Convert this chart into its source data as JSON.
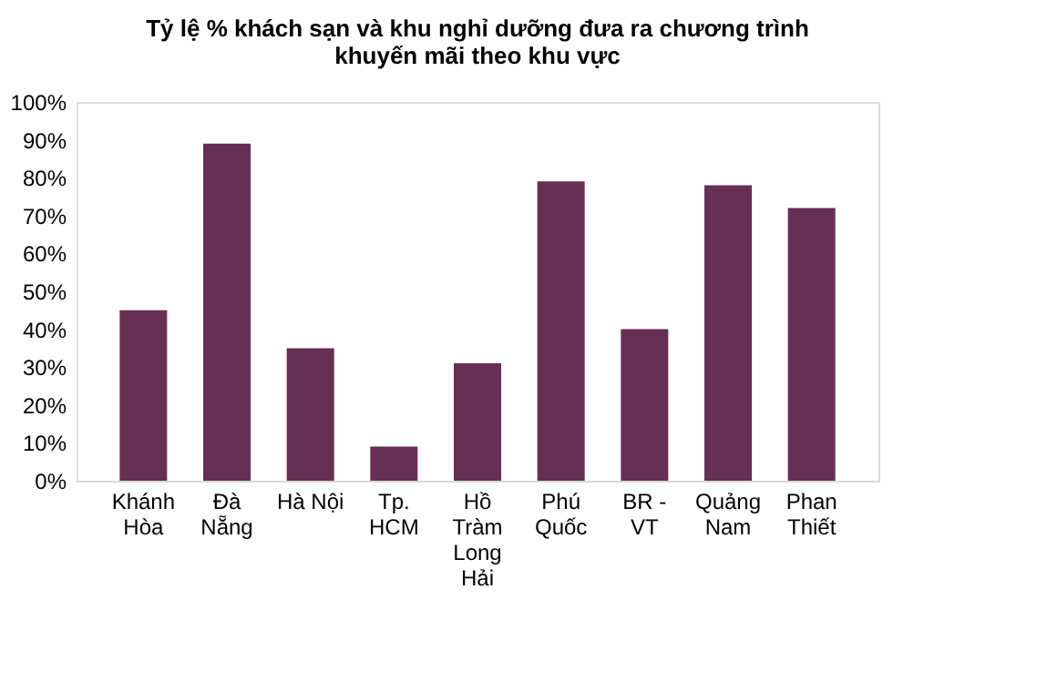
{
  "chart_data": {
    "type": "bar",
    "title": "Tỷ lệ % khách sạn và khu nghỉ dưỡng đưa ra chương trình khuyến mãi theo khu vực",
    "categories": [
      "Khánh Hòa",
      "Đà Nẵng",
      "Hà Nội",
      "Tp. HCM",
      "Hồ Tràm Long Hải",
      "Phú Quốc",
      "BR - VT",
      "Quảng Nam",
      "Phan Thiết"
    ],
    "values": [
      45,
      89,
      35,
      9,
      31,
      79,
      40,
      78,
      72
    ],
    "color": "#662f53",
    "ylim": [
      0,
      100
    ],
    "yticks": [
      {
        "value": 0,
        "label": "0%"
      },
      {
        "value": 10,
        "label": "10%"
      },
      {
        "value": 20,
        "label": "20%"
      },
      {
        "value": 30,
        "label": "30%"
      },
      {
        "value": 40,
        "label": "40%"
      },
      {
        "value": 50,
        "label": "50%"
      },
      {
        "value": 60,
        "label": "60%"
      },
      {
        "value": 70,
        "label": "70%"
      },
      {
        "value": 80,
        "label": "80%"
      },
      {
        "value": 90,
        "label": "90%"
      },
      {
        "value": 100,
        "label": "100%"
      }
    ],
    "grid": false
  }
}
